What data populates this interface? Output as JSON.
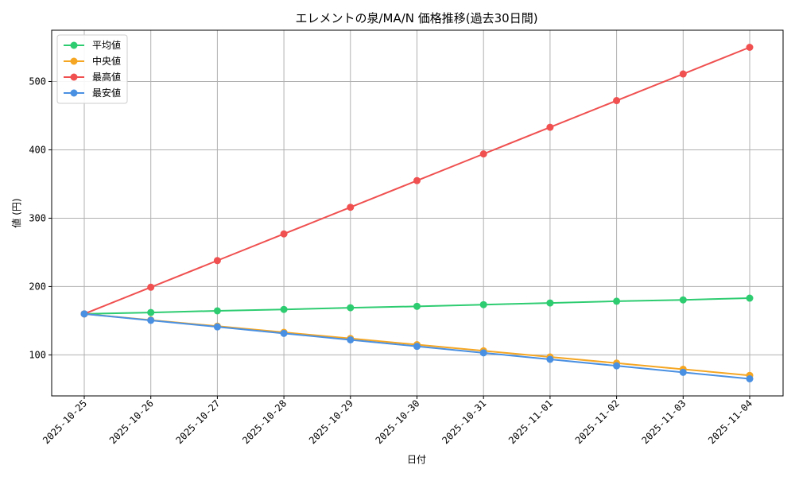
{
  "chart_data": {
    "type": "line",
    "title": "エレメントの泉/MA/N 価格推移(過去30日間)",
    "xlabel": "日付",
    "ylabel": "値 (円)",
    "x": [
      "2025-10-25",
      "2025-10-26",
      "2025-10-27",
      "2025-10-28",
      "2025-10-29",
      "2025-10-30",
      "2025-10-31",
      "2025-11-01",
      "2025-11-02",
      "2025-11-03",
      "2025-11-04"
    ],
    "ylim": [
      40,
      575
    ],
    "yticks": [
      100,
      200,
      300,
      400,
      500
    ],
    "grid": true,
    "legend_position": "top-left",
    "series": [
      {
        "name": "平均値",
        "color": "#2ecc71",
        "values": [
          160,
          162,
          164.5,
          166.5,
          169,
          171,
          173.5,
          176,
          178.5,
          180.5,
          183
        ]
      },
      {
        "name": "中央値",
        "color": "#f5a623",
        "values": [
          160,
          151,
          142,
          133,
          124,
          115,
          106,
          97,
          88,
          79,
          70
        ]
      },
      {
        "name": "最高値",
        "color": "#f05050",
        "values": [
          160,
          199,
          238,
          277,
          316,
          355,
          394,
          433,
          472,
          511,
          550
        ]
      },
      {
        "name": "最安値",
        "color": "#4a90e2",
        "values": [
          160,
          150.5,
          141,
          131.5,
          122,
          112.5,
          103,
          93.5,
          84,
          74.5,
          65
        ]
      }
    ]
  }
}
